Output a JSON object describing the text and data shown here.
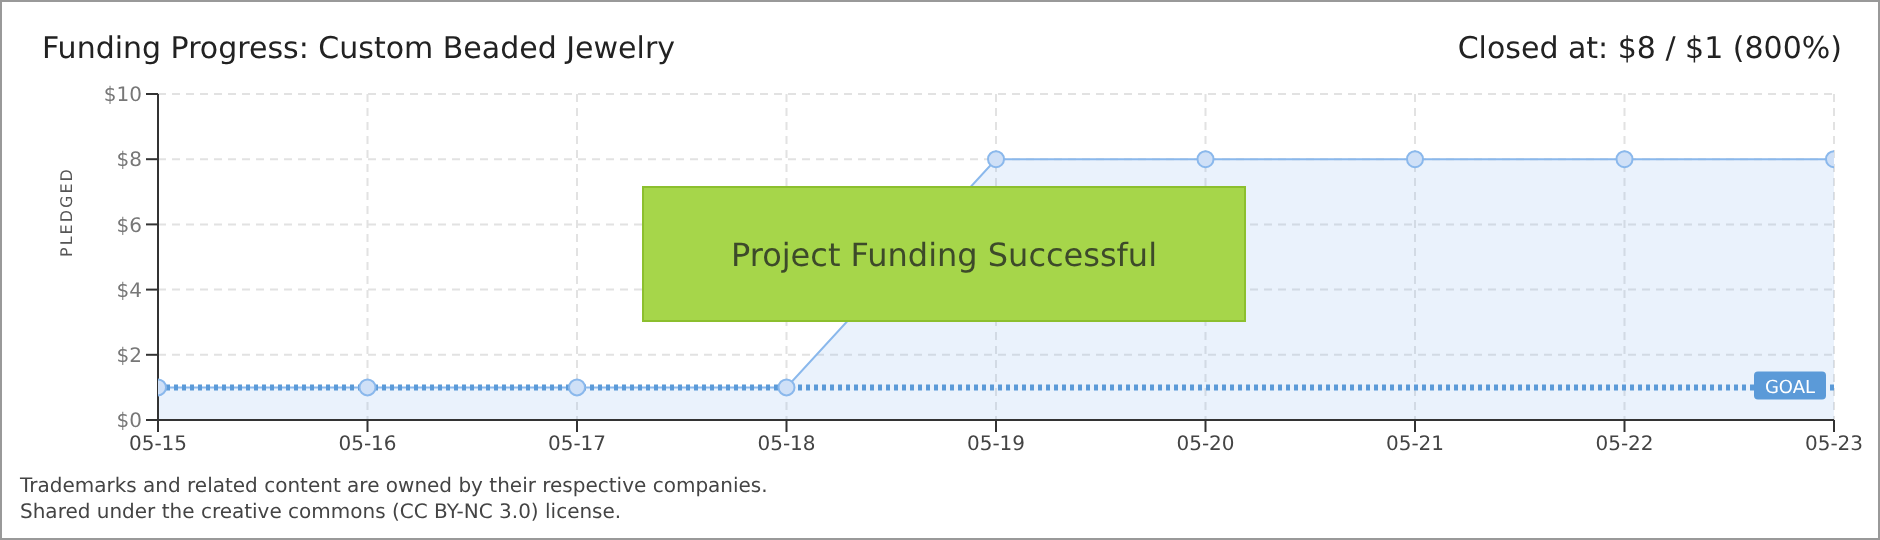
{
  "chart_data": {
    "type": "area",
    "title": "Funding Progress: Custom Beaded Jewelry",
    "subtitle": "Closed at: $8 / $1 (800%)",
    "ylabel": "PLEDGED",
    "categories": [
      "05-15",
      "05-16",
      "05-17",
      "05-18",
      "05-19",
      "05-20",
      "05-21",
      "05-22",
      "05-23"
    ],
    "series": [
      {
        "color": "#8ab8ec",
        "values": [
          1,
          1,
          1,
          1,
          8,
          8,
          8,
          8,
          8
        ]
      }
    ],
    "ylim": [
      0,
      10
    ],
    "yticks": [
      {
        "value": 0,
        "label": "$0"
      },
      {
        "value": 2,
        "label": "$2"
      },
      {
        "value": 4,
        "label": "$4"
      },
      {
        "value": 6,
        "label": "$6"
      },
      {
        "value": 8,
        "label": "$8"
      },
      {
        "value": 10,
        "label": "$10"
      }
    ],
    "ref_lines": [
      {
        "axis": "y",
        "value": 1,
        "label": "GOAL",
        "color": "#5b9ad8",
        "line_style": "dotted"
      }
    ],
    "grid": true,
    "marker": "circle",
    "legend": false,
    "annotations": [
      "Project Funding Successful",
      "Trademarks and related content are owned by their respective companies.",
      "Shared under the creative commons (CC BY-NC 3.0) license."
    ]
  }
}
